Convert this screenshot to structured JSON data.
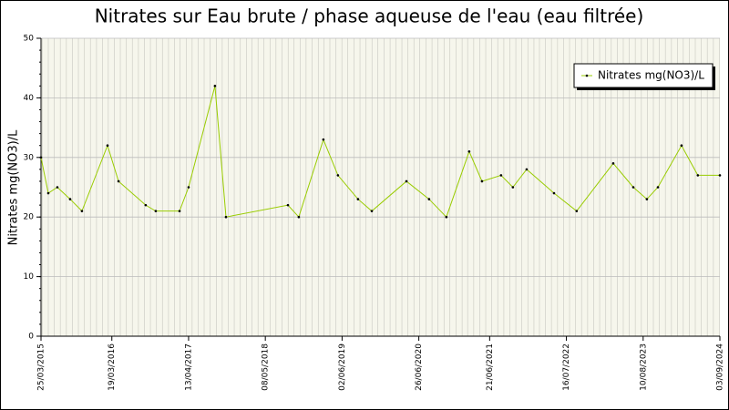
{
  "chart_data": {
    "type": "line",
    "title": "Nitrates sur Eau brute / phase aqueuse de l'eau (eau filtrée)",
    "y_label": "Nitrates mg(NO3)/L",
    "x": [
      "2015-03-25",
      "2015-05-01",
      "2015-06-16",
      "2015-08-20",
      "2015-10-19",
      "2016-02-26",
      "2016-04-22",
      "2016-09-07",
      "2016-10-28",
      "2017-02-26",
      "2017-04-13",
      "2017-08-25",
      "2017-10-20",
      "2018-08-31",
      "2018-10-25",
      "2019-02-27",
      "2019-05-12",
      "2019-08-22",
      "2019-10-31",
      "2020-04-24",
      "2020-08-17",
      "2020-11-13",
      "2021-03-09",
      "2021-05-13",
      "2021-08-18",
      "2021-10-17",
      "2021-12-26",
      "2022-05-14",
      "2022-09-06",
      "2023-03-11",
      "2023-06-21",
      "2023-08-29",
      "2023-10-24",
      "2024-02-21",
      "2024-05-14",
      "2024-09-03"
    ],
    "series": [
      {
        "name": "Nitrates mg(NO3)/L",
        "color": "#99cc00",
        "values": [
          30,
          24,
          25,
          23,
          21,
          32,
          26,
          22,
          21,
          21,
          25,
          42,
          20,
          22,
          20,
          33,
          27,
          23,
          21,
          26,
          23,
          20,
          31,
          26,
          27,
          25,
          28,
          24,
          21,
          29,
          25,
          23,
          25,
          32,
          27,
          27
        ]
      }
    ],
    "xlim": [
      "2015-03-25",
      "2024-09-03"
    ],
    "xticks": [
      {
        "value": "2015-03-25",
        "label": "25/03/2015"
      },
      {
        "value": "2016-03-19",
        "label": "19/03/2016"
      },
      {
        "value": "2017-04-13",
        "label": "13/04/2017"
      },
      {
        "value": "2018-05-08",
        "label": "08/05/2018"
      },
      {
        "value": "2019-06-02",
        "label": "02/06/2019"
      },
      {
        "value": "2020-06-26",
        "label": "26/06/2020"
      },
      {
        "value": "2021-06-21",
        "label": "21/06/2021"
      },
      {
        "value": "2022-07-16",
        "label": "16/07/2022"
      },
      {
        "value": "2023-08-10",
        "label": "10/08/2023"
      },
      {
        "value": "2024-09-03",
        "label": "03/09/2024"
      }
    ],
    "ylim": [
      0,
      50
    ],
    "yticks": [
      0,
      10,
      20,
      30,
      40,
      50
    ],
    "grid": true,
    "legend": "top-right"
  }
}
